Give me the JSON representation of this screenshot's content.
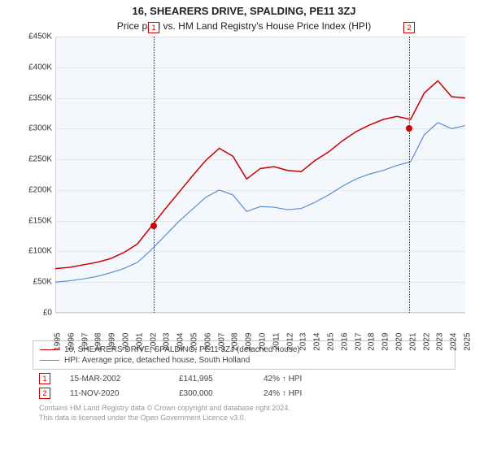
{
  "title1": "16, SHEARERS DRIVE, SPALDING, PE11 3ZJ",
  "title2": "Price paid vs. HM Land Registry's House Price Index (HPI)",
  "chart": {
    "type": "line",
    "background_color": "#f4f7fb",
    "grid_color": "#e6e6e6",
    "ylim": [
      0,
      450000
    ],
    "ytick_step": 50000,
    "yticks": [
      "£0",
      "£50K",
      "£100K",
      "£150K",
      "£200K",
      "£250K",
      "£300K",
      "£350K",
      "£400K",
      "£450K"
    ],
    "xlim": [
      1995,
      2025
    ],
    "xticks": [
      1995,
      1996,
      1997,
      1998,
      1999,
      2000,
      2001,
      2002,
      2003,
      2004,
      2005,
      2006,
      2007,
      2008,
      2009,
      2010,
      2011,
      2012,
      2013,
      2014,
      2015,
      2016,
      2017,
      2018,
      2019,
      2020,
      2021,
      2022,
      2023,
      2024,
      2025
    ],
    "series": [
      {
        "name": "property",
        "label": "16, SHEARERS DRIVE, SPALDING, PE11 3ZJ (detached house)",
        "color": "#cc0000",
        "line_width": 1.5,
        "x": [
          1995,
          1996,
          1997,
          1998,
          1999,
          2000,
          2001,
          2002,
          2003,
          2004,
          2005,
          2006,
          2007,
          2008,
          2009,
          2010,
          2011,
          2012,
          2013,
          2014,
          2015,
          2016,
          2017,
          2018,
          2019,
          2020,
          2021,
          2022,
          2023,
          2024,
          2025
        ],
        "y": [
          72000,
          74000,
          78000,
          82000,
          88000,
          98000,
          112000,
          140000,
          168000,
          195000,
          222000,
          248000,
          268000,
          255000,
          218000,
          235000,
          238000,
          232000,
          230000,
          248000,
          262000,
          280000,
          295000,
          306000,
          315000,
          320000,
          315000,
          358000,
          378000,
          352000,
          350000
        ]
      },
      {
        "name": "hpi",
        "label": "HPI: Average price, detached house, South Holland",
        "color": "#5b8dd6",
        "line_width": 1.2,
        "x": [
          1995,
          1996,
          1997,
          1998,
          1999,
          2000,
          2001,
          2002,
          2003,
          2004,
          2005,
          2006,
          2007,
          2008,
          2009,
          2010,
          2011,
          2012,
          2013,
          2014,
          2015,
          2016,
          2017,
          2018,
          2019,
          2020,
          2021,
          2022,
          2023,
          2024,
          2025
        ],
        "y": [
          50000,
          52000,
          55000,
          59000,
          65000,
          72000,
          82000,
          102000,
          125000,
          148000,
          168000,
          188000,
          200000,
          192000,
          165000,
          173000,
          172000,
          168000,
          170000,
          180000,
          192000,
          206000,
          218000,
          226000,
          232000,
          240000,
          246000,
          290000,
          310000,
          300000,
          305000
        ]
      }
    ],
    "markers": [
      {
        "n": "1",
        "date_x": 2002.2,
        "price": 141995
      },
      {
        "n": "2",
        "date_x": 2020.9,
        "price": 300000
      }
    ]
  },
  "legend": {
    "items": [
      {
        "color": "#cc0000",
        "width": 1.5,
        "label_key": "chart.series.0.label"
      },
      {
        "color": "#5b8dd6",
        "width": 1.2,
        "label_key": "chart.series.1.label"
      }
    ]
  },
  "sales": [
    {
      "n": "1",
      "date": "15-MAR-2002",
      "price": "£141,995",
      "delta": "42% ↑ HPI"
    },
    {
      "n": "2",
      "date": "11-NOV-2020",
      "price": "£300,000",
      "delta": "24% ↑ HPI"
    }
  ],
  "footer1": "Contains HM Land Registry data © Crown copyright and database right 2024.",
  "footer2": "This data is licensed under the Open Government Licence v3.0."
}
